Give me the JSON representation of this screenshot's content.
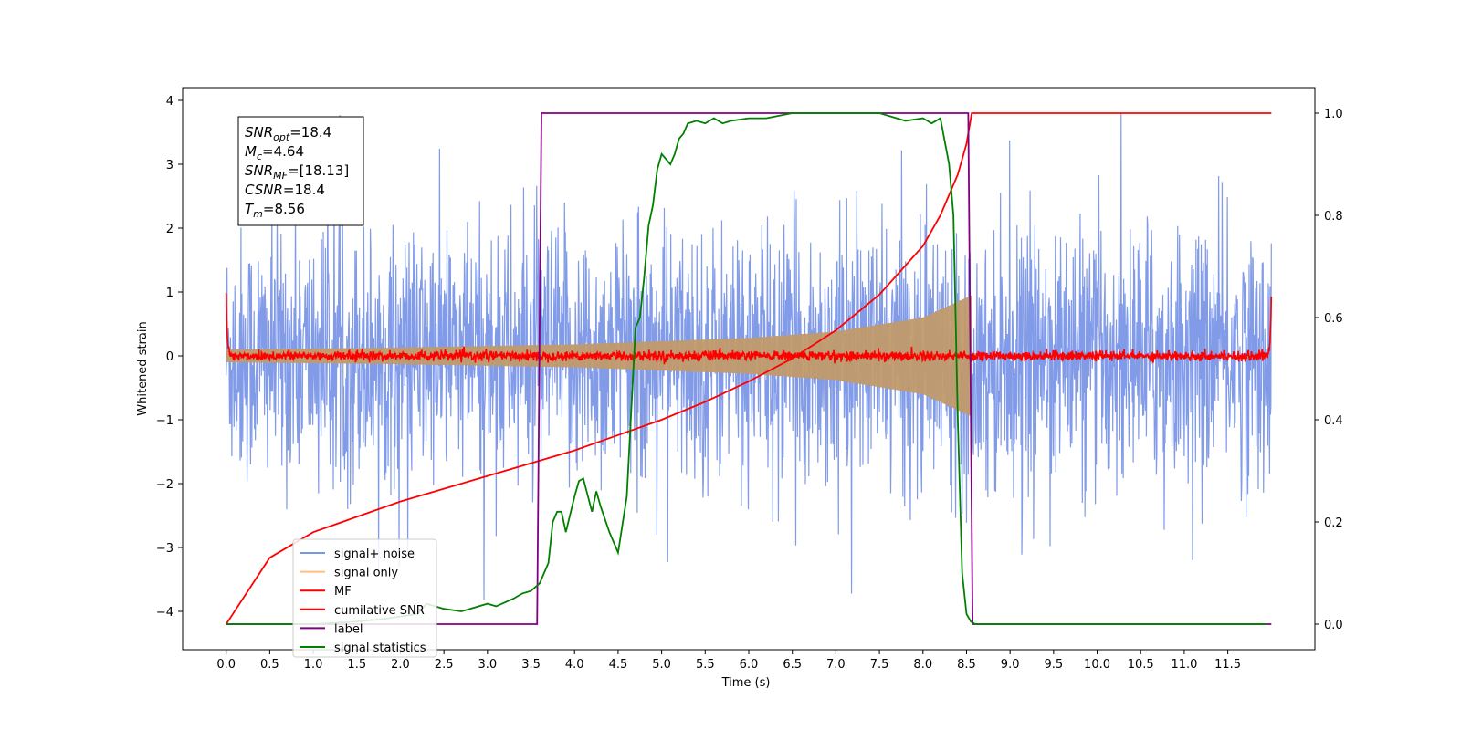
{
  "chart_data": {
    "type": "line",
    "xlabel": "Time (s)",
    "ylabel": "Whitened strain",
    "xlim": [
      -0.5,
      12.5
    ],
    "ylim": [
      -4.6,
      4.2
    ],
    "ylim_right": [
      -0.05,
      1.05
    ],
    "x_ticks": [
      "0.0",
      "0.5",
      "1.0",
      "1.5",
      "2.0",
      "2.5",
      "3.0",
      "3.5",
      "4.0",
      "4.5",
      "5.0",
      "5.5",
      "6.0",
      "6.5",
      "7.0",
      "7.5",
      "8.0",
      "8.5",
      "9.0",
      "9.5",
      "10.0",
      "10.5",
      "11.0",
      "11.5"
    ],
    "y_ticks": [
      "4",
      "3",
      "2",
      "1",
      "0",
      "−1",
      "−2",
      "−3",
      "−4"
    ],
    "y2_ticks": [
      "1.0",
      "0.8",
      "0.6",
      "0.4",
      "0.2",
      "0.0"
    ],
    "legend_position": "lower-left",
    "annotation_box": [
      {
        "label": "SNR",
        "sub": "opt",
        "value": "=18.4"
      },
      {
        "label": "M",
        "sub": "c",
        "value": "=4.64"
      },
      {
        "label": "SNR",
        "sub": "MF",
        "value": "=[18.13]"
      },
      {
        "label": "CSNR",
        "sub": "",
        "value": "=18.4"
      },
      {
        "label": "T",
        "sub": "m",
        "value": "=8.56"
      }
    ],
    "series": [
      {
        "name": "signal+ noise",
        "color": "#7a96e8",
        "axis": "left",
        "kind": "noise_band",
        "x_range": [
          0.0,
          12.0
        ],
        "typical_amplitude": 1.8,
        "max_amplitude": 3.8
      },
      {
        "name": "signal only",
        "color": "#c09a6b",
        "axis": "left",
        "kind": "chirp_envelope",
        "x_range": [
          0.0,
          8.56
        ],
        "envelope": {
          "x": [
            0.0,
            2.0,
            4.0,
            6.0,
            7.0,
            8.0,
            8.4,
            8.56
          ],
          "y": [
            0.1,
            0.13,
            0.18,
            0.28,
            0.38,
            0.6,
            0.85,
            0.95
          ]
        }
      },
      {
        "name": "MF",
        "color": "#ff0000",
        "axis": "left",
        "kind": "matched_filter",
        "x_range": [
          0.0,
          12.0
        ],
        "noise_level": 0.07,
        "edge_spikes": [
          {
            "x": 0.0,
            "y": 1.0
          },
          {
            "x": 12.0,
            "y": 0.9
          }
        ]
      },
      {
        "name": "cumilative SNR",
        "color": "#ff0000",
        "axis": "right",
        "kind": "line",
        "x": [
          0.0,
          0.5,
          1.0,
          1.5,
          2.0,
          2.5,
          3.0,
          3.5,
          4.0,
          4.5,
          5.0,
          5.5,
          6.0,
          6.5,
          7.0,
          7.5,
          8.0,
          8.2,
          8.4,
          8.5,
          8.56,
          9.0,
          10.0,
          11.0,
          12.0
        ],
        "y": [
          0.0,
          0.13,
          0.18,
          0.21,
          0.24,
          0.265,
          0.29,
          0.315,
          0.34,
          0.37,
          0.4,
          0.435,
          0.475,
          0.52,
          0.575,
          0.645,
          0.74,
          0.8,
          0.88,
          0.94,
          1.0,
          1.0,
          1.0,
          1.0,
          1.0
        ]
      },
      {
        "name": "label",
        "color": "#800080",
        "axis": "right",
        "kind": "step",
        "x": [
          0.0,
          3.57,
          3.62,
          8.52,
          8.57,
          12.0
        ],
        "y": [
          0.0,
          0.0,
          1.0,
          1.0,
          0.0,
          0.0
        ]
      },
      {
        "name": "signal statistics",
        "color": "#008000",
        "axis": "right",
        "kind": "line",
        "x": [
          0.0,
          0.5,
          1.0,
          1.5,
          1.8,
          2.0,
          2.2,
          2.3,
          2.5,
          2.7,
          2.8,
          3.0,
          3.1,
          3.3,
          3.4,
          3.5,
          3.6,
          3.7,
          3.75,
          3.8,
          3.85,
          3.9,
          4.0,
          4.05,
          4.1,
          4.2,
          4.25,
          4.3,
          4.4,
          4.5,
          4.6,
          4.7,
          4.75,
          4.8,
          4.85,
          4.9,
          4.95,
          5.0,
          5.1,
          5.15,
          5.2,
          5.25,
          5.3,
          5.4,
          5.5,
          5.6,
          5.7,
          5.8,
          6.0,
          6.2,
          6.5,
          7.0,
          7.5,
          7.7,
          7.8,
          8.0,
          8.1,
          8.2,
          8.3,
          8.35,
          8.4,
          8.45,
          8.5,
          8.55,
          8.6,
          8.7,
          9.0,
          10.0,
          11.0,
          11.95
        ],
        "y": [
          0.0,
          0.0,
          0.0,
          0.005,
          0.01,
          0.015,
          0.02,
          0.04,
          0.03,
          0.025,
          0.03,
          0.04,
          0.035,
          0.05,
          0.06,
          0.065,
          0.08,
          0.12,
          0.2,
          0.22,
          0.22,
          0.18,
          0.25,
          0.28,
          0.285,
          0.22,
          0.26,
          0.23,
          0.18,
          0.14,
          0.25,
          0.58,
          0.6,
          0.68,
          0.78,
          0.82,
          0.89,
          0.92,
          0.9,
          0.92,
          0.95,
          0.96,
          0.98,
          0.985,
          0.98,
          0.99,
          0.98,
          0.985,
          0.99,
          0.99,
          1.0,
          1.0,
          1.0,
          0.99,
          0.985,
          0.99,
          0.98,
          0.99,
          0.9,
          0.8,
          0.4,
          0.1,
          0.02,
          0.005,
          0.0,
          0.0,
          0.0,
          0.0,
          0.0,
          0.0
        ]
      }
    ]
  }
}
